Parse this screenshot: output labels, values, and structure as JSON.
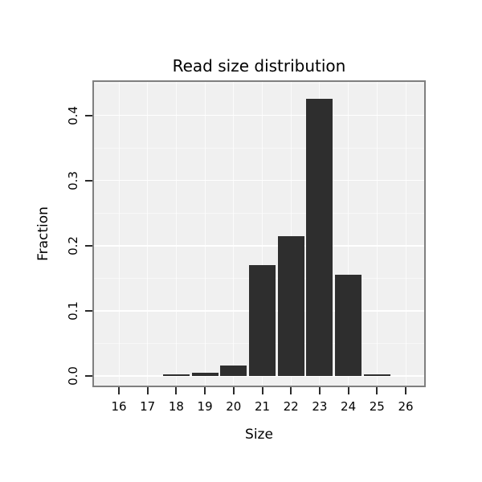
{
  "chart_data": {
    "type": "bar",
    "title": "Read size distribution",
    "xlabel": "Size",
    "ylabel": "Fraction",
    "categories": [
      16,
      17,
      18,
      19,
      20,
      21,
      22,
      23,
      24,
      25,
      26
    ],
    "values": [
      0,
      0,
      0.0025,
      0.005,
      0.016,
      0.17,
      0.215,
      0.425,
      0.155,
      0.003,
      0
    ],
    "ylim": [
      0,
      0.45
    ],
    "yticks": [
      0,
      0.1,
      0.2,
      0.3,
      0.4
    ],
    "grid": true,
    "legend": "none",
    "bar_color": "#2e2e2e",
    "panel_background": "#f0f0f0",
    "gridline_color": "#ffffff",
    "panel_border_color": "#7f7f7f"
  }
}
